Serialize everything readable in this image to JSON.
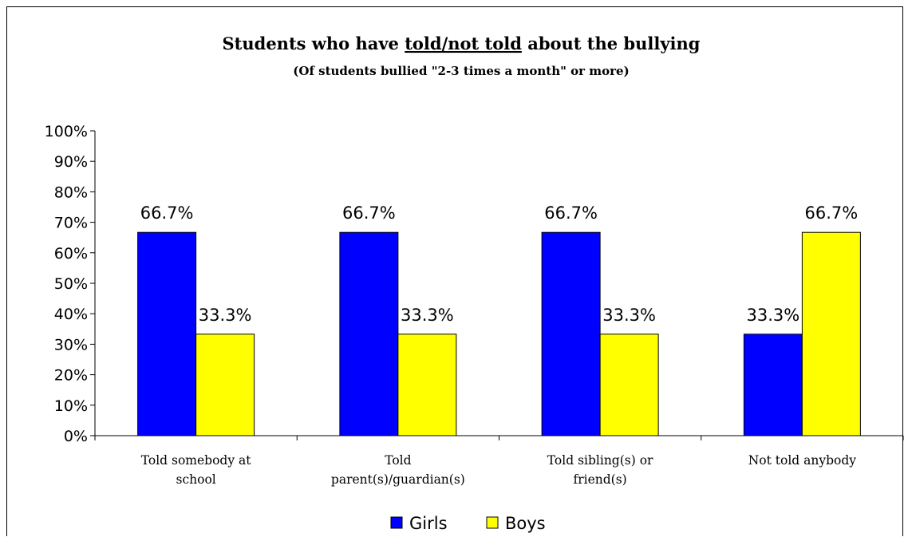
{
  "chart_data": {
    "type": "bar",
    "title_parts": [
      "Students who have ",
      "told/not told",
      " about the bullying"
    ],
    "subtitle": "(Of students bullied \"2-3 times a month\" or more)",
    "categories": [
      [
        "Told somebody at",
        "school"
      ],
      [
        "Told",
        "parent(s)/guardian(s)"
      ],
      [
        "Told sibling(s) or",
        "friend(s)"
      ],
      [
        "Not told anybody"
      ]
    ],
    "series": [
      {
        "name": "Girls",
        "color": "#0000ff",
        "values": [
          66.7,
          66.7,
          66.7,
          33.3
        ],
        "labels": [
          "66.7%",
          "66.7%",
          "66.7%",
          "33.3%"
        ]
      },
      {
        "name": "Boys",
        "color": "#ffff00",
        "values": [
          33.3,
          33.3,
          33.3,
          66.7
        ],
        "labels": [
          "33.3%",
          "33.3%",
          "33.3%",
          "66.7%"
        ]
      }
    ],
    "y_ticks": [
      "0%",
      "10%",
      "20%",
      "30%",
      "40%",
      "50%",
      "60%",
      "70%",
      "80%",
      "90%",
      "100%"
    ],
    "ylim": [
      0,
      100
    ],
    "grid": false,
    "legend_position": "bottom"
  }
}
